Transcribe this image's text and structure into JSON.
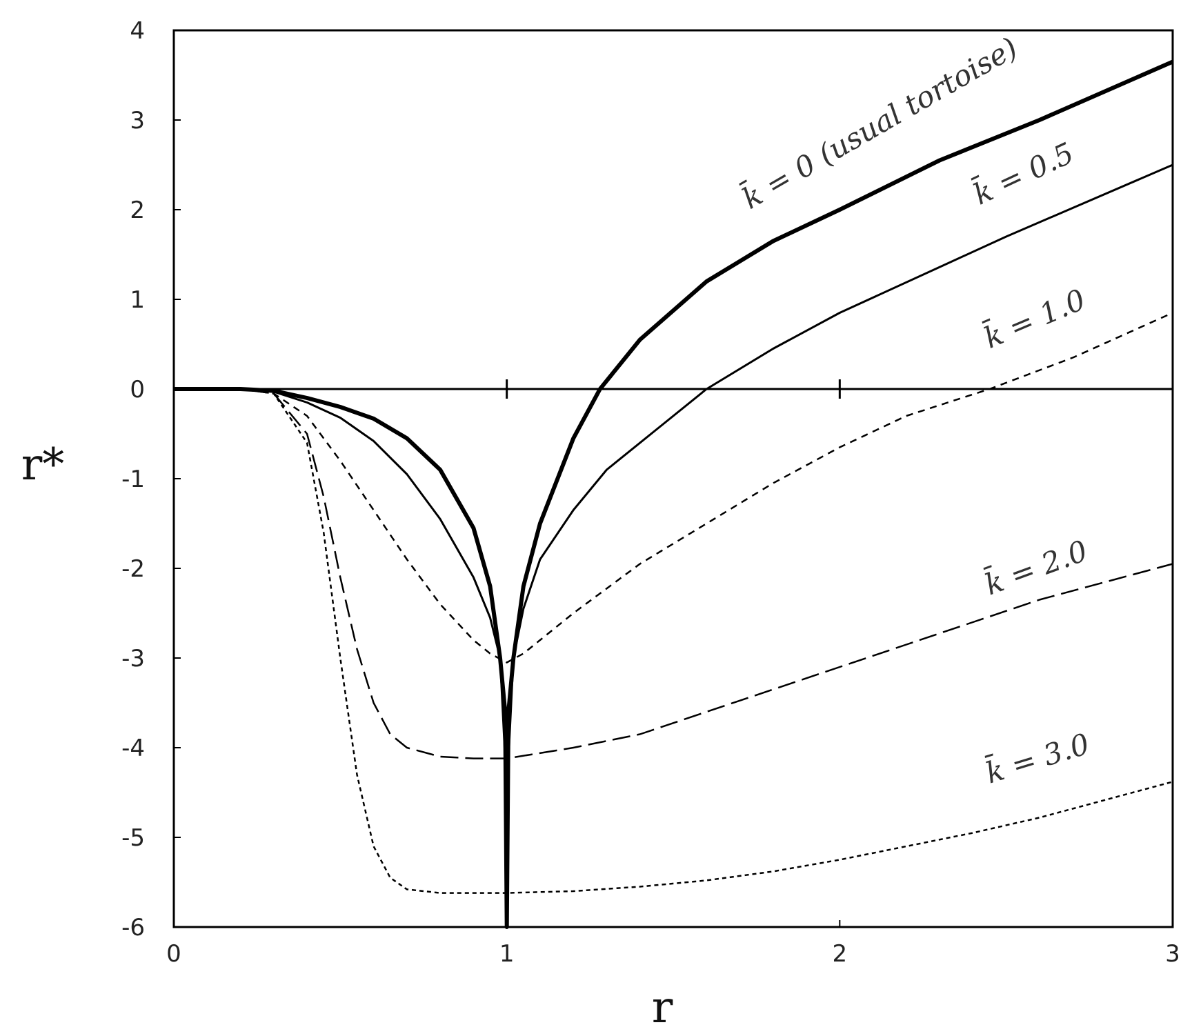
{
  "chart_data": {
    "type": "line",
    "title": "",
    "xlabel": "r",
    "ylabel": "r*",
    "xlim": [
      0,
      3
    ],
    "ylim": [
      -6,
      4
    ],
    "xticks": [
      0,
      1,
      2,
      3
    ],
    "yticks": [
      -6,
      -5,
      -4,
      -3,
      -2,
      -1,
      0,
      1,
      2,
      3,
      4
    ],
    "grid": false,
    "series": [
      {
        "name": "k̄ = 0 (usual tortoise)",
        "style": "thick-solid",
        "x": [
          0.0,
          0.1,
          0.2,
          0.3,
          0.4,
          0.5,
          0.6,
          0.7,
          0.8,
          0.9,
          0.95,
          0.98,
          0.995,
          1.0,
          1.005,
          1.02,
          1.05,
          1.1,
          1.2,
          1.28,
          1.4,
          1.6,
          1.8,
          2.0,
          2.3,
          2.6,
          3.0
        ],
        "y": [
          0.0,
          0.0,
          0.0,
          -0.02,
          -0.1,
          -0.2,
          -0.33,
          -0.55,
          -0.9,
          -1.55,
          -2.2,
          -3.0,
          -3.6,
          -6.0,
          -3.6,
          -3.0,
          -2.2,
          -1.5,
          -0.55,
          0.0,
          0.55,
          1.2,
          1.65,
          2.0,
          2.55,
          3.0,
          3.65
        ]
      },
      {
        "name": "k̄ = 0.5",
        "style": "thin-solid",
        "x": [
          0.0,
          0.2,
          0.3,
          0.4,
          0.5,
          0.6,
          0.7,
          0.8,
          0.9,
          0.95,
          0.98,
          1.0,
          1.02,
          1.05,
          1.1,
          1.2,
          1.3,
          1.45,
          1.6,
          1.8,
          2.0,
          2.5,
          3.0
        ],
        "y": [
          0.0,
          0.0,
          -0.03,
          -0.15,
          -0.32,
          -0.58,
          -0.95,
          -1.45,
          -2.1,
          -2.55,
          -3.0,
          -4.5,
          -3.0,
          -2.45,
          -1.9,
          -1.35,
          -0.9,
          -0.45,
          0.0,
          0.45,
          0.85,
          1.7,
          2.5
        ]
      },
      {
        "name": "k̄ = 1.0",
        "style": "dashed",
        "x": [
          0.0,
          0.2,
          0.3,
          0.4,
          0.5,
          0.6,
          0.7,
          0.8,
          0.9,
          0.95,
          1.0,
          1.05,
          1.1,
          1.2,
          1.4,
          1.6,
          1.8,
          2.0,
          2.2,
          2.45,
          2.7,
          3.0
        ],
        "y": [
          0.0,
          0.0,
          -0.05,
          -0.3,
          -0.8,
          -1.35,
          -1.9,
          -2.4,
          -2.8,
          -2.95,
          -3.05,
          -2.95,
          -2.8,
          -2.5,
          -1.95,
          -1.5,
          -1.05,
          -0.65,
          -0.3,
          0.0,
          0.35,
          0.85
        ]
      },
      {
        "name": "k̄ = 2.0",
        "style": "long-dashed",
        "x": [
          0.0,
          0.2,
          0.3,
          0.4,
          0.45,
          0.5,
          0.55,
          0.6,
          0.65,
          0.7,
          0.8,
          0.9,
          1.0,
          1.2,
          1.4,
          1.6,
          1.8,
          2.0,
          2.2,
          2.4,
          2.6,
          2.8,
          3.0
        ],
        "y": [
          0.0,
          0.0,
          -0.05,
          -0.5,
          -1.2,
          -2.1,
          -2.9,
          -3.5,
          -3.85,
          -4.0,
          -4.1,
          -4.12,
          -4.12,
          -4.0,
          -3.85,
          -3.6,
          -3.35,
          -3.1,
          -2.85,
          -2.6,
          -2.35,
          -2.15,
          -1.95
        ]
      },
      {
        "name": "k̄ = 3.0",
        "style": "short-dashed",
        "x": [
          0.0,
          0.2,
          0.3,
          0.4,
          0.45,
          0.5,
          0.55,
          0.6,
          0.65,
          0.7,
          0.8,
          0.9,
          1.0,
          1.2,
          1.4,
          1.6,
          1.8,
          2.0,
          2.2,
          2.4,
          2.6,
          2.8,
          3.0
        ],
        "y": [
          0.0,
          0.0,
          -0.05,
          -0.6,
          -1.6,
          -3.0,
          -4.3,
          -5.1,
          -5.45,
          -5.58,
          -5.62,
          -5.62,
          -5.62,
          -5.6,
          -5.55,
          -5.48,
          -5.38,
          -5.25,
          -5.1,
          -4.95,
          -4.78,
          -4.58,
          -4.38
        ]
      }
    ],
    "annotations": [
      {
        "text": "k̄ = 0 (usual tortoise)"
      },
      {
        "text": "k̄ = 0.5"
      },
      {
        "text": "k̄ = 1.0"
      },
      {
        "text": "k̄ = 2.0"
      },
      {
        "text": "k̄ = 3.0"
      }
    ]
  }
}
